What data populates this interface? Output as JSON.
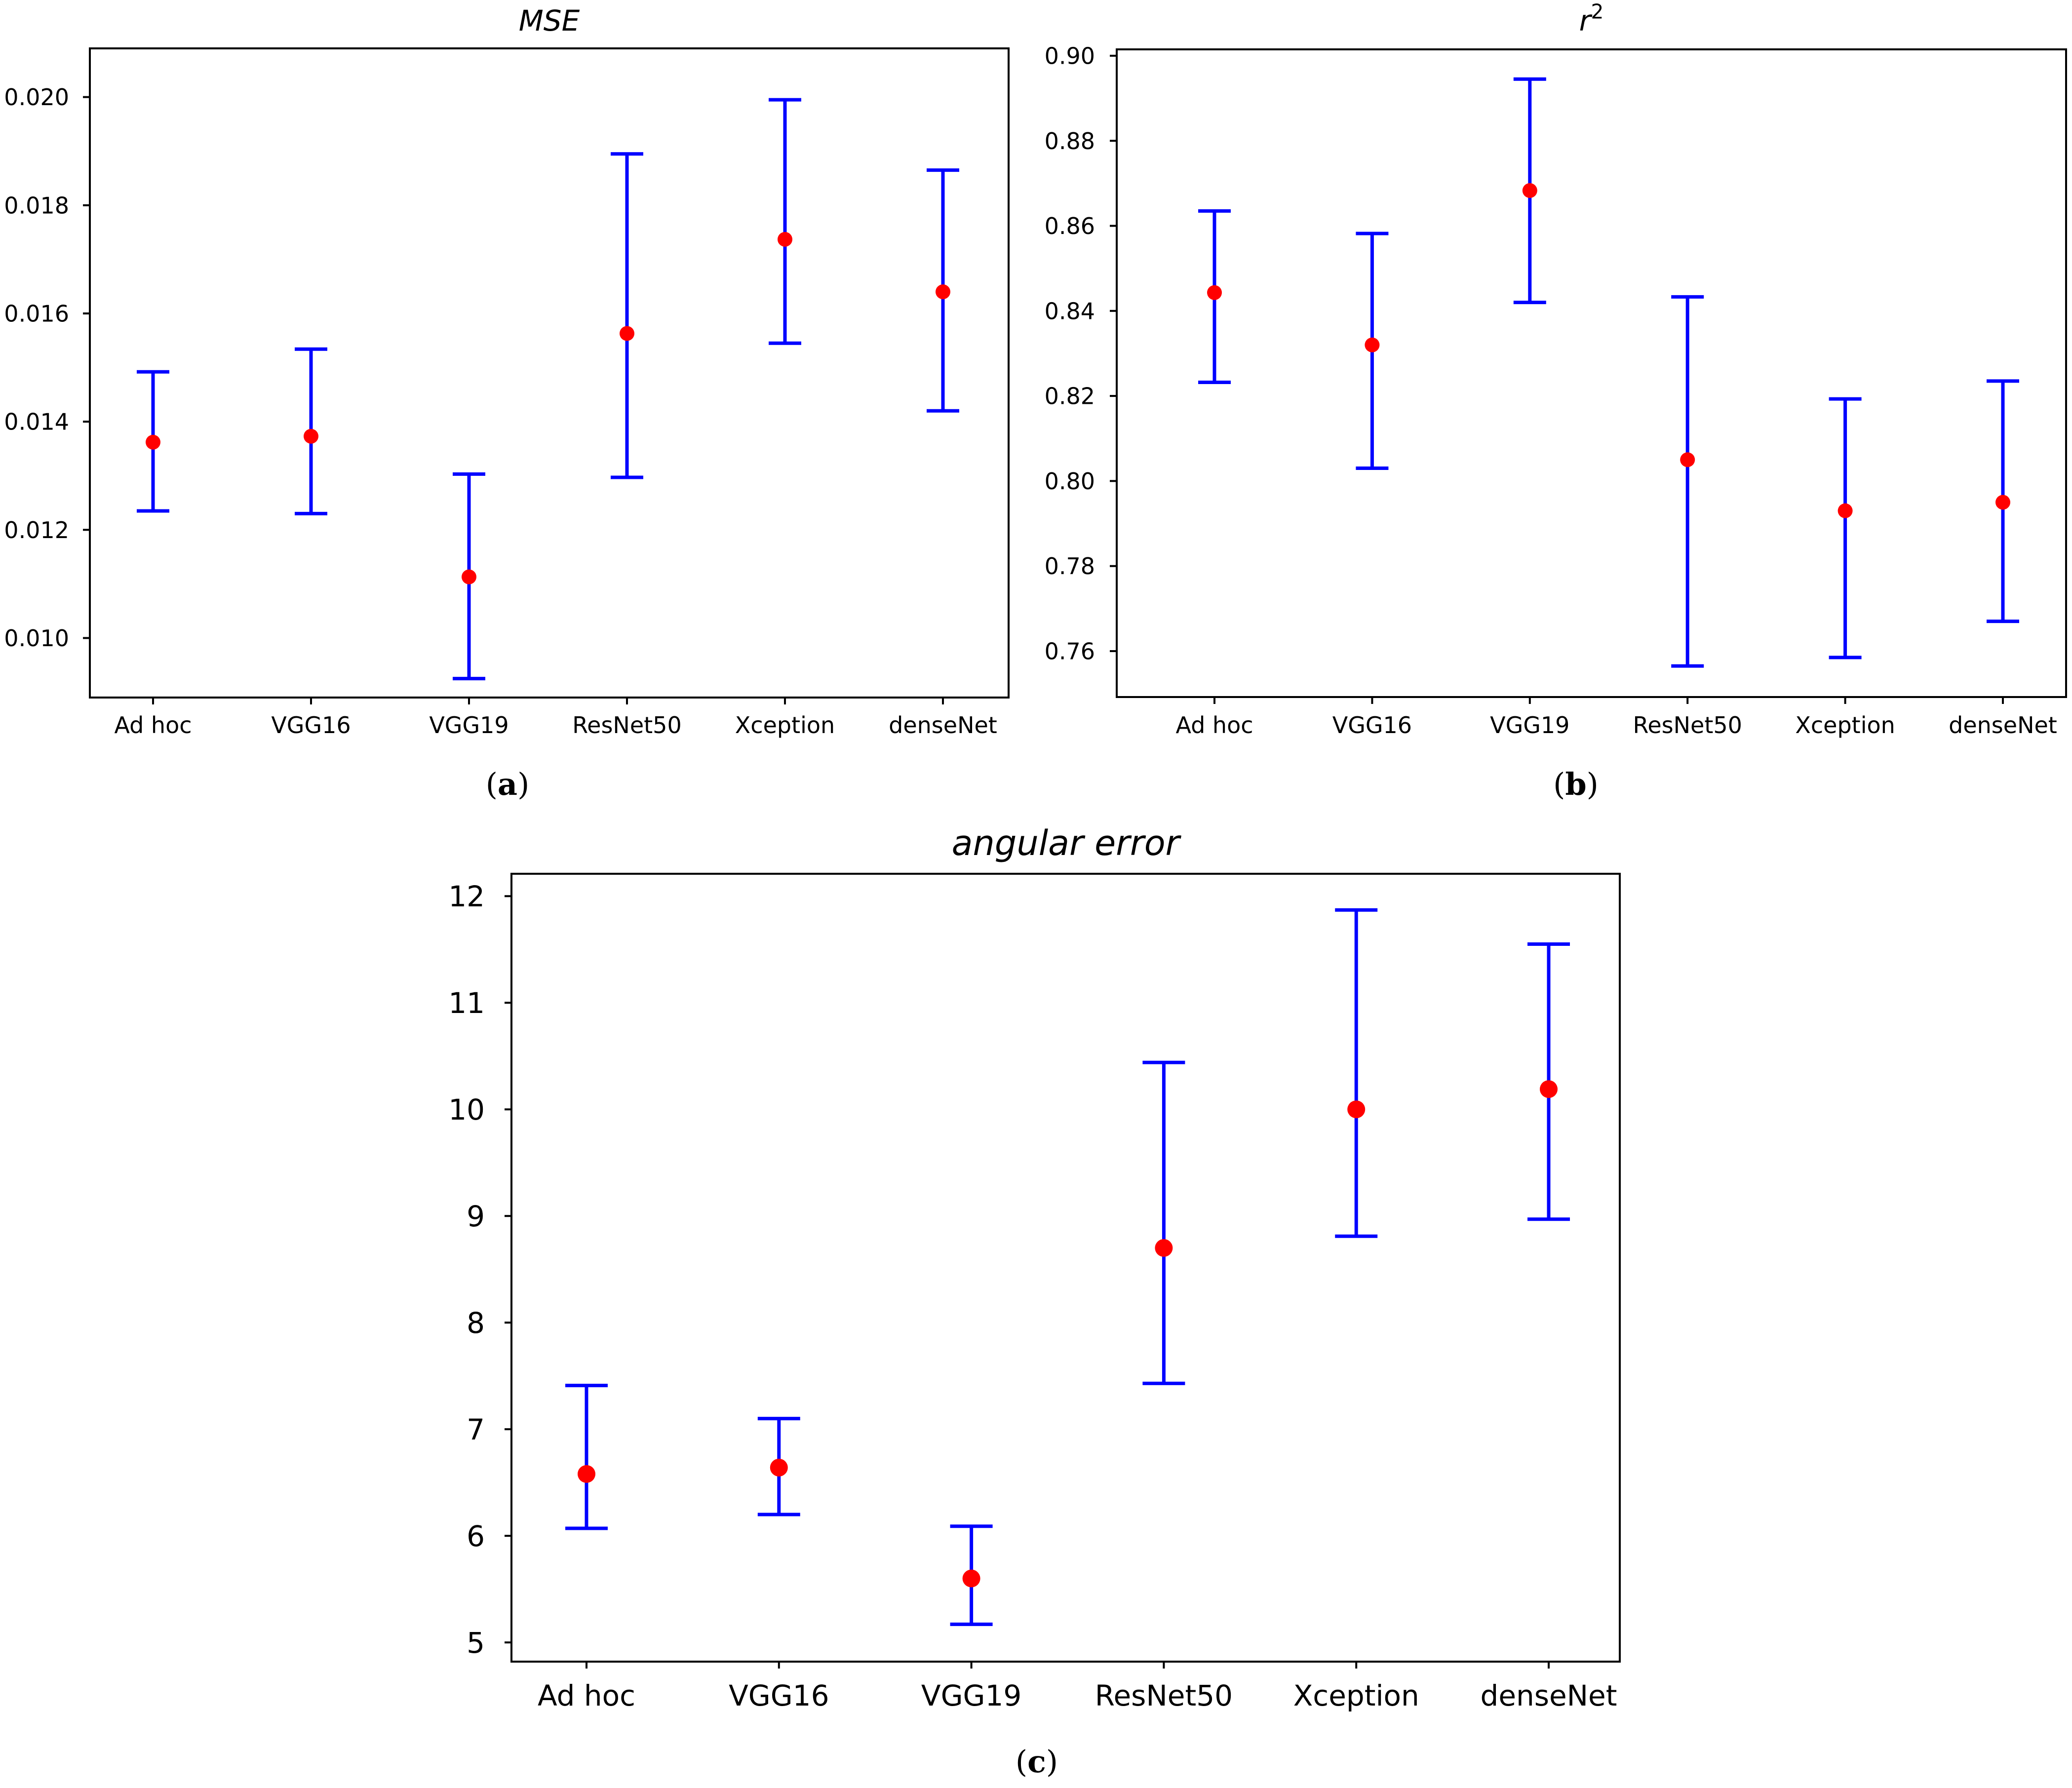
{
  "colors": {
    "error_bar": "#0000ff",
    "point": "#ff0000",
    "axes": "#000000",
    "background": "#ffffff"
  },
  "chart_data": [
    {
      "id": "a",
      "type": "errorbar",
      "title": "MSE",
      "title_superscript": "",
      "xlabel": "",
      "ylabel": "",
      "caption": {
        "open": "(",
        "letter": "a",
        "close": ")"
      },
      "categories": [
        "Ad hoc",
        "VGG16",
        "VGG19",
        "ResNet50",
        "Xception",
        "denseNet"
      ],
      "values": [
        0.01362,
        0.01373,
        0.01113,
        0.01563,
        0.01737,
        0.0164
      ],
      "lower": [
        0.01235,
        0.0123,
        0.00925,
        0.01297,
        0.01545,
        0.0142
      ],
      "upper": [
        0.01492,
        0.01534,
        0.01303,
        0.01895,
        0.01995,
        0.01865
      ],
      "ylim": [
        0.0089,
        0.0209
      ],
      "yticks": [
        0.01,
        0.012,
        0.014,
        0.016,
        0.018,
        0.02
      ],
      "ytick_labels": [
        "0.010",
        "0.012",
        "0.014",
        "0.016",
        "0.018",
        "0.020"
      ]
    },
    {
      "id": "b",
      "type": "errorbar",
      "title": "r",
      "title_superscript": "2",
      "xlabel": "",
      "ylabel": "",
      "caption": {
        "open": "(",
        "letter": "b",
        "close": ")"
      },
      "categories": [
        "Ad hoc",
        "VGG16",
        "VGG19",
        "ResNet50",
        "Xception",
        "denseNet"
      ],
      "values": [
        0.8443,
        0.832,
        0.8683,
        0.805,
        0.793,
        0.795
      ],
      "lower": [
        0.8232,
        0.803,
        0.842,
        0.7565,
        0.7585,
        0.767
      ],
      "upper": [
        0.8635,
        0.8582,
        0.8945,
        0.8433,
        0.8193,
        0.8235
      ],
      "ylim": [
        0.7492,
        0.9015
      ],
      "yticks": [
        0.76,
        0.78,
        0.8,
        0.82,
        0.84,
        0.86,
        0.88,
        0.9
      ],
      "ytick_labels": [
        "0.76",
        "0.78",
        "0.80",
        "0.82",
        "0.84",
        "0.86",
        "0.88",
        "0.90"
      ]
    },
    {
      "id": "c",
      "type": "errorbar",
      "title": "angular error",
      "title_superscript": "",
      "xlabel": "",
      "ylabel": "",
      "caption": {
        "open": "(",
        "letter": "c",
        "close": ")"
      },
      "categories": [
        "Ad hoc",
        "VGG16",
        "VGG19",
        "ResNet50",
        "Xception",
        "denseNet"
      ],
      "values": [
        6.58,
        6.64,
        5.6,
        8.7,
        10.0,
        10.19
      ],
      "lower": [
        6.07,
        6.2,
        5.17,
        7.43,
        8.81,
        8.97
      ],
      "upper": [
        7.41,
        7.1,
        6.09,
        10.44,
        11.87,
        11.55
      ],
      "ylim": [
        4.82,
        12.21
      ],
      "yticks": [
        5,
        6,
        7,
        8,
        9,
        10,
        11,
        12
      ],
      "ytick_labels": [
        "5",
        "6",
        "7",
        "8",
        "9",
        "10",
        "11",
        "12"
      ]
    }
  ]
}
